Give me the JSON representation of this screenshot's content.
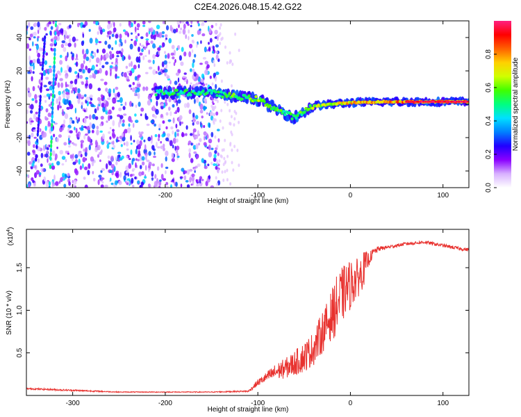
{
  "title": "C2E4.2026.048.15.42.G22",
  "colors": {
    "snr_line": "#e8312e",
    "frame": "#000000",
    "background": "#ffffff"
  },
  "chart_data": [
    {
      "type": "heatmap",
      "xlabel": "Height of straight line (km)",
      "ylabel": "Frequency (Hz)",
      "xlim": [
        -350,
        128
      ],
      "ylim": [
        -50,
        50
      ],
      "xticks": [
        -300,
        -200,
        -100,
        0,
        100
      ],
      "xtick_labels": [
        "-300",
        "-200",
        "-100",
        "0",
        "100"
      ],
      "yticks": [
        -40,
        -20,
        0,
        20,
        40
      ],
      "ytick_labels": [
        "-40",
        "-20",
        "0",
        "20",
        "40"
      ],
      "colorbar": {
        "label": "Normalized spectral amplitude",
        "range": [
          0,
          1
        ],
        "ticks": [
          0.0,
          0.2,
          0.4,
          0.6,
          0.8
        ],
        "tick_labels": [
          "0.0",
          "0.2",
          "0.4",
          "0.6",
          "0.8"
        ],
        "colormap": [
          "#ffffff",
          "#d8b0ff",
          "#8a00ff",
          "#2000ff",
          "#0080ff",
          "#00e0ff",
          "#00ff80",
          "#40ff00",
          "#d0ff00",
          "#ffd000",
          "#ff6000",
          "#ff0000",
          "#ff2080"
        ]
      },
      "features": {
        "noise_region_x": [
          -350,
          -150
        ],
        "noise_amplitude": 0.3,
        "streaks": [
          {
            "x0": -325,
            "y0": -50,
            "x1": -318,
            "y1": 50,
            "amplitude": 0.55
          },
          {
            "x0": -340,
            "y0": -35,
            "x1": -330,
            "y1": 40,
            "amplitude": 0.3
          }
        ],
        "ridge": [
          {
            "x": -210,
            "y": 7,
            "amp": 0.55
          },
          {
            "x": -150,
            "y": 7,
            "amp": 0.55
          },
          {
            "x": -130,
            "y": 5,
            "amp": 0.6
          },
          {
            "x": -100,
            "y": 3,
            "amp": 0.65
          },
          {
            "x": -80,
            "y": -3,
            "amp": 0.6
          },
          {
            "x": -60,
            "y": -8,
            "amp": 0.55
          },
          {
            "x": -40,
            "y": -1,
            "amp": 0.7
          },
          {
            "x": 0,
            "y": 1,
            "amp": 0.8
          },
          {
            "x": 40,
            "y": 1.5,
            "amp": 0.85
          },
          {
            "x": 80,
            "y": 1.5,
            "amp": 0.9
          },
          {
            "x": 128,
            "y": 1.5,
            "amp": 0.9
          }
        ]
      }
    },
    {
      "type": "line",
      "xlabel": "Height of straight line (km)",
      "ylabel": "SNR (10 * v/v)",
      "yscale_label": "(x10",
      "yscale_exponent": "4",
      "yscale_suffix": ")",
      "xlim": [
        -350,
        128
      ],
      "ylim": [
        0,
        1.95
      ],
      "xticks": [
        -300,
        -200,
        -100,
        0,
        100
      ],
      "xtick_labels": [
        "-300",
        "-200",
        "-100",
        "0",
        "100"
      ],
      "yticks": [
        0.5,
        1.0,
        1.5
      ],
      "ytick_labels": [
        "0.5",
        "1.0",
        "1.5"
      ],
      "series": [
        {
          "name": "SNR",
          "x": [
            -350,
            -300,
            -250,
            -200,
            -150,
            -110,
            -100,
            -90,
            -80,
            -70,
            -60,
            -50,
            -40,
            -30,
            -25,
            -20,
            -15,
            -10,
            -5,
            0,
            5,
            10,
            15,
            20,
            25,
            30,
            40,
            50,
            60,
            70,
            80,
            90,
            100,
            110,
            120,
            128
          ],
          "y": [
            0.08,
            0.06,
            0.04,
            0.04,
            0.04,
            0.05,
            0.15,
            0.22,
            0.28,
            0.32,
            0.38,
            0.45,
            0.55,
            0.75,
            0.85,
            0.95,
            1.05,
            1.15,
            1.25,
            1.3,
            1.35,
            1.4,
            1.5,
            1.6,
            1.68,
            1.72,
            1.74,
            1.76,
            1.78,
            1.79,
            1.8,
            1.78,
            1.76,
            1.74,
            1.72,
            1.71
          ],
          "noise": [
            0.01,
            0.01,
            0.005,
            0.005,
            0.005,
            0.01,
            0.04,
            0.06,
            0.1,
            0.12,
            0.15,
            0.18,
            0.2,
            0.25,
            0.25,
            0.3,
            0.35,
            0.35,
            0.3,
            0.3,
            0.25,
            0.22,
            0.2,
            0.08,
            0.05,
            0.03,
            0.02,
            0.02,
            0.02,
            0.02,
            0.02,
            0.02,
            0.02,
            0.02,
            0.02,
            0.02
          ]
        }
      ]
    }
  ]
}
